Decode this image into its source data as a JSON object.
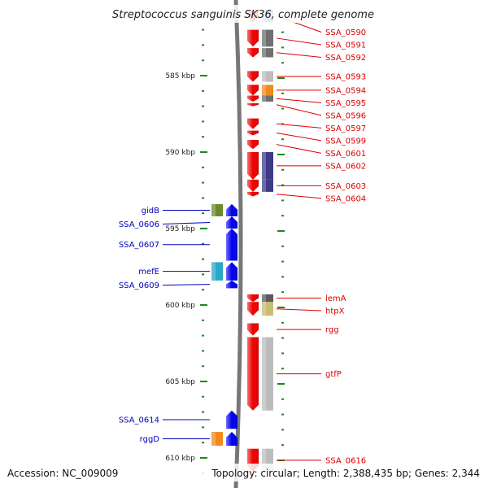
{
  "title": "Streptococcus sanguinis SK36, complete genome",
  "footer": {
    "accession": "Accession: NC_009009",
    "topology": "Topology: circular; Length: 2,388,435 bp; Genes: 2,344"
  },
  "kbp_ticks": [
    {
      "value": 585,
      "label": "585 kbp"
    },
    {
      "value": 590,
      "label": "590 kbp"
    },
    {
      "value": 595,
      "label": "595 kbp"
    },
    {
      "value": 600,
      "label": "600 kbp"
    },
    {
      "value": 605,
      "label": "605 kbp"
    },
    {
      "value": 610,
      "label": "610 kbp"
    }
  ],
  "colors": {
    "forward_gene": "#ee0000",
    "reverse_gene": "#0000ee",
    "backbone": "#777777",
    "tick": "#1a8a1a",
    "forward_label": "#dd0000",
    "reverse_label": "#0000bb"
  },
  "forward_genes": [
    {
      "label": "SSA_0590",
      "start_kbp": 580.7,
      "end_kbp": 581.5,
      "cog_color": "#4a7fd0"
    },
    {
      "label": "SSA_0591",
      "start_kbp": 582.0,
      "end_kbp": 583.1,
      "cog_color": "#6f6f6f"
    },
    {
      "label": "SSA_0592",
      "start_kbp": 583.2,
      "end_kbp": 583.8,
      "cog_color": "#6f6f6f"
    },
    {
      "label": "SSA_0593",
      "start_kbp": 584.7,
      "end_kbp": 585.4,
      "cog_color": "#bdbdbd"
    },
    {
      "label": "SSA_0594",
      "start_kbp": 585.6,
      "end_kbp": 586.3,
      "cog_color": "#f08a1c"
    },
    {
      "label": "SSA_0595",
      "start_kbp": 586.3,
      "end_kbp": 586.7,
      "cog_color": "#6f6f6f"
    },
    {
      "label": "SSA_0596",
      "start_kbp": 586.8,
      "end_kbp": 587.0,
      "cog_color": ""
    },
    {
      "label": "SSA_0597",
      "start_kbp": 587.8,
      "end_kbp": 588.5,
      "cog_color": ""
    },
    {
      "label": "SSA_0599",
      "start_kbp": 588.6,
      "end_kbp": 588.9,
      "cog_color": ""
    },
    {
      "label": "SSA_0601",
      "start_kbp": 589.2,
      "end_kbp": 589.8,
      "cog_color": ""
    },
    {
      "label": "SSA_0602",
      "start_kbp": 590.0,
      "end_kbp": 591.8,
      "cog_color": "#3e3a88"
    },
    {
      "label": "SSA_0603",
      "start_kbp": 591.8,
      "end_kbp": 592.6,
      "cog_color": "#3e3a88"
    },
    {
      "label": "SSA_0604",
      "start_kbp": 592.6,
      "end_kbp": 592.9,
      "cog_color": ""
    },
    {
      "label": "lemA",
      "start_kbp": 599.3,
      "end_kbp": 599.8,
      "cog_color": "#5a5a5a"
    },
    {
      "label": "htpX",
      "start_kbp": 599.8,
      "end_kbp": 600.7,
      "cog_color": "#c8bd74"
    },
    {
      "label": "rgg",
      "start_kbp": 601.2,
      "end_kbp": 602.0,
      "cog_color": ""
    },
    {
      "label": "gtfP",
      "start_kbp": 602.1,
      "end_kbp": 606.9,
      "cog_color": "#bcbcbc"
    },
    {
      "label": "SSA_0616",
      "start_kbp": 609.4,
      "end_kbp": 610.9,
      "cog_color": "#bcbcbc"
    }
  ],
  "reverse_genes": [
    {
      "label": "gidB",
      "start_kbp": 593.4,
      "end_kbp": 594.2,
      "cog_color": "#6b8a2a"
    },
    {
      "label": "SSA_0606",
      "start_kbp": 594.2,
      "end_kbp": 595.0,
      "cog_color": ""
    },
    {
      "label": "SSA_0607",
      "start_kbp": 595.0,
      "end_kbp": 597.1,
      "cog_color": ""
    },
    {
      "label": "mefE",
      "start_kbp": 597.2,
      "end_kbp": 598.4,
      "cog_color": "#2aa8c8"
    },
    {
      "label": "SSA_0609",
      "start_kbp": 598.4,
      "end_kbp": 598.9,
      "cog_color": ""
    },
    {
      "label": "SSA_0614",
      "start_kbp": 606.9,
      "end_kbp": 608.1,
      "cog_color": ""
    },
    {
      "label": "rggD",
      "start_kbp": 608.3,
      "end_kbp": 609.2,
      "cog_color": "#f08a1c"
    }
  ]
}
